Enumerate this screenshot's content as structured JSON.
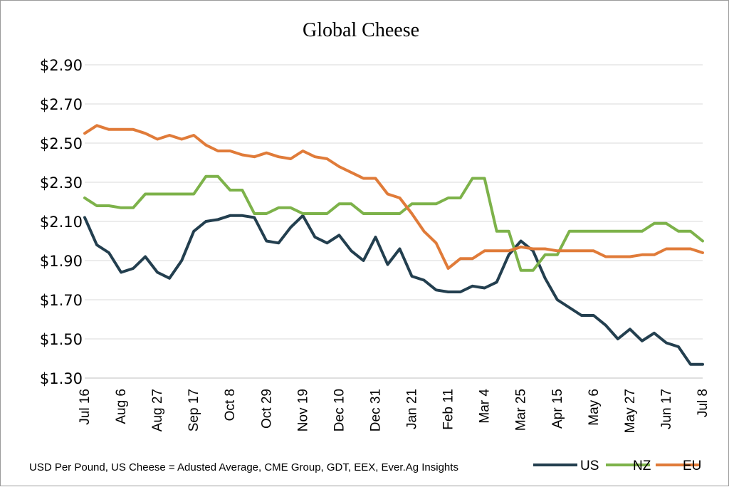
{
  "chart_data": {
    "type": "line",
    "title": "Global Cheese",
    "source_note": "USD Per Pound, US Cheese = Adusted Average, CME Group, GDT, EEX, Ever.Ag Insights",
    "ylim": [
      1.3,
      2.9
    ],
    "y_ticks": [
      2.9,
      2.7,
      2.5,
      2.3,
      2.1,
      1.9,
      1.7,
      1.5,
      1.3
    ],
    "y_tick_labels": [
      "$2.90",
      "$2.70",
      "$2.50",
      "$2.30",
      "$2.10",
      "$1.90",
      "$1.70",
      "$1.50",
      "$1.30"
    ],
    "x_tick_labels": [
      "Jul 16",
      "Aug 6",
      "Aug 27",
      "Sep 17",
      "Oct 8",
      "Oct 29",
      "Nov 19",
      "Dec 10",
      "Dec 31",
      "Jan 21",
      "Feb 11",
      "Mar 4",
      "Mar 25",
      "Apr 15",
      "May 6",
      "May 27",
      "Jun 17",
      "Jul 8"
    ],
    "x": [
      "Jul 16",
      "Jul 23",
      "Jul 30",
      "Aug 6",
      "Aug 13",
      "Aug 20",
      "Aug 27",
      "Sep 3",
      "Sep 10",
      "Sep 17",
      "Sep 24",
      "Oct 1",
      "Oct 8",
      "Oct 15",
      "Oct 22",
      "Oct 29",
      "Nov 5",
      "Nov 12",
      "Nov 19",
      "Nov 26",
      "Dec 3",
      "Dec 10",
      "Dec 17",
      "Dec 24",
      "Dec 31",
      "Jan 7",
      "Jan 14",
      "Jan 21",
      "Jan 28",
      "Feb 4",
      "Feb 11",
      "Feb 18",
      "Feb 25",
      "Mar 4",
      "Mar 11",
      "Mar 18",
      "Mar 25",
      "Apr 1",
      "Apr 8",
      "Apr 15",
      "Apr 22",
      "Apr 29",
      "May 6",
      "May 13",
      "May 20",
      "May 27",
      "Jun 3",
      "Jun 10",
      "Jun 17",
      "Jun 24",
      "Jul 1",
      "Jul 8"
    ],
    "grid": true,
    "legend_placement": "bottom-right",
    "series": [
      {
        "name": "US",
        "color": "#233f4f",
        "values": [
          2.12,
          1.98,
          1.94,
          1.84,
          1.86,
          1.92,
          1.84,
          1.81,
          1.9,
          2.05,
          2.1,
          2.11,
          2.13,
          2.13,
          2.12,
          2.0,
          1.99,
          2.07,
          2.13,
          2.02,
          1.99,
          2.03,
          1.95,
          1.9,
          2.02,
          1.88,
          1.96,
          1.82,
          1.8,
          1.75,
          1.74,
          1.74,
          1.77,
          1.76,
          1.79,
          1.93,
          2.0,
          1.95,
          1.81,
          1.7,
          1.66,
          1.62,
          1.62,
          1.57,
          1.5,
          1.55,
          1.49,
          1.53,
          1.48,
          1.46,
          1.37,
          1.37
        ]
      },
      {
        "name": "NZ",
        "color": "#7db24a",
        "values": [
          2.22,
          2.18,
          2.18,
          2.17,
          2.17,
          2.24,
          2.24,
          2.24,
          2.24,
          2.24,
          2.33,
          2.33,
          2.26,
          2.26,
          2.14,
          2.14,
          2.17,
          2.17,
          2.14,
          2.14,
          2.14,
          2.19,
          2.19,
          2.14,
          2.14,
          2.14,
          2.14,
          2.19,
          2.19,
          2.19,
          2.22,
          2.22,
          2.32,
          2.32,
          2.05,
          2.05,
          1.85,
          1.85,
          1.93,
          1.93,
          2.05,
          2.05,
          2.05,
          2.05,
          2.05,
          2.05,
          2.05,
          2.09,
          2.09,
          2.05,
          2.05,
          2.0
        ]
      },
      {
        "name": "EU",
        "color": "#e07b39",
        "values": [
          2.55,
          2.59,
          2.57,
          2.57,
          2.57,
          2.55,
          2.52,
          2.54,
          2.52,
          2.54,
          2.49,
          2.46,
          2.46,
          2.44,
          2.43,
          2.45,
          2.43,
          2.42,
          2.46,
          2.43,
          2.42,
          2.38,
          2.35,
          2.32,
          2.32,
          2.24,
          2.22,
          2.14,
          2.05,
          1.99,
          1.86,
          1.91,
          1.91,
          1.95,
          1.95,
          1.95,
          1.97,
          1.96,
          1.96,
          1.95,
          1.95,
          1.95,
          1.95,
          1.92,
          1.92,
          1.92,
          1.93,
          1.93,
          1.96,
          1.96,
          1.96,
          1.94
        ]
      }
    ]
  }
}
